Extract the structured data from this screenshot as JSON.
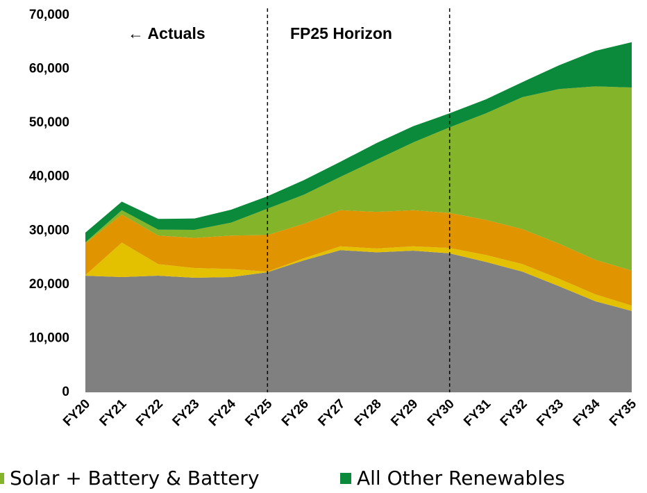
{
  "chart_data": {
    "type": "stacked_area",
    "categories": [
      "FY20",
      "FY21",
      "FY22",
      "FY23",
      "FY24",
      "FY25",
      "FY26",
      "FY27",
      "FY28",
      "FY29",
      "FY30",
      "FY31",
      "FY32",
      "FY33",
      "FY34",
      "FY35"
    ],
    "series": [
      {
        "color": "#808080",
        "values": [
          21650,
          21400,
          21650,
          21270,
          21400,
          22300,
          24500,
          26400,
          26000,
          26300,
          25800,
          24200,
          22400,
          19700,
          16900,
          15100
        ]
      },
      {
        "color": "#e3c100",
        "values": [
          100,
          6400,
          2150,
          1800,
          1500,
          100,
          400,
          700,
          700,
          800,
          1000,
          1300,
          1400,
          1400,
          1300,
          1000
        ]
      },
      {
        "color": "#e09400",
        "values": [
          5900,
          5200,
          5300,
          5600,
          6200,
          6800,
          6400,
          6700,
          6800,
          6700,
          6500,
          6500,
          6500,
          6500,
          6400,
          6500
        ]
      },
      {
        "name": "Solar + Battery & Battery",
        "color": "#84b42a",
        "values": [
          200,
          800,
          1100,
          1500,
          2400,
          4900,
          5400,
          6200,
          9700,
          12600,
          15900,
          19800,
          24500,
          28700,
          32200,
          34000
        ]
      },
      {
        "name": "All Other Renewables",
        "color": "#0a8a3a",
        "values": [
          1800,
          1600,
          2000,
          2100,
          2400,
          2300,
          2700,
          2800,
          3100,
          3000,
          2600,
          2600,
          2800,
          4400,
          6600,
          8400
        ]
      }
    ],
    "ylim": [
      0,
      70000
    ],
    "yticks": [
      0,
      {
        "value": 10000,
        "label": "10,000"
      },
      {
        "value": 20000,
        "label": "20,000"
      },
      {
        "value": 30000,
        "label": "30,000"
      },
      {
        "value": 40000,
        "label": "40,000"
      },
      {
        "value": 50000,
        "label": "50,000"
      },
      {
        "value": 60000,
        "label": "60,000"
      },
      {
        "value": 70000,
        "label": "70,000"
      }
    ],
    "reference_lines": [
      "FY25",
      "FY30"
    ],
    "annotations": [
      "← Actuals",
      "FP25 Horizon"
    ],
    "grid": false
  }
}
